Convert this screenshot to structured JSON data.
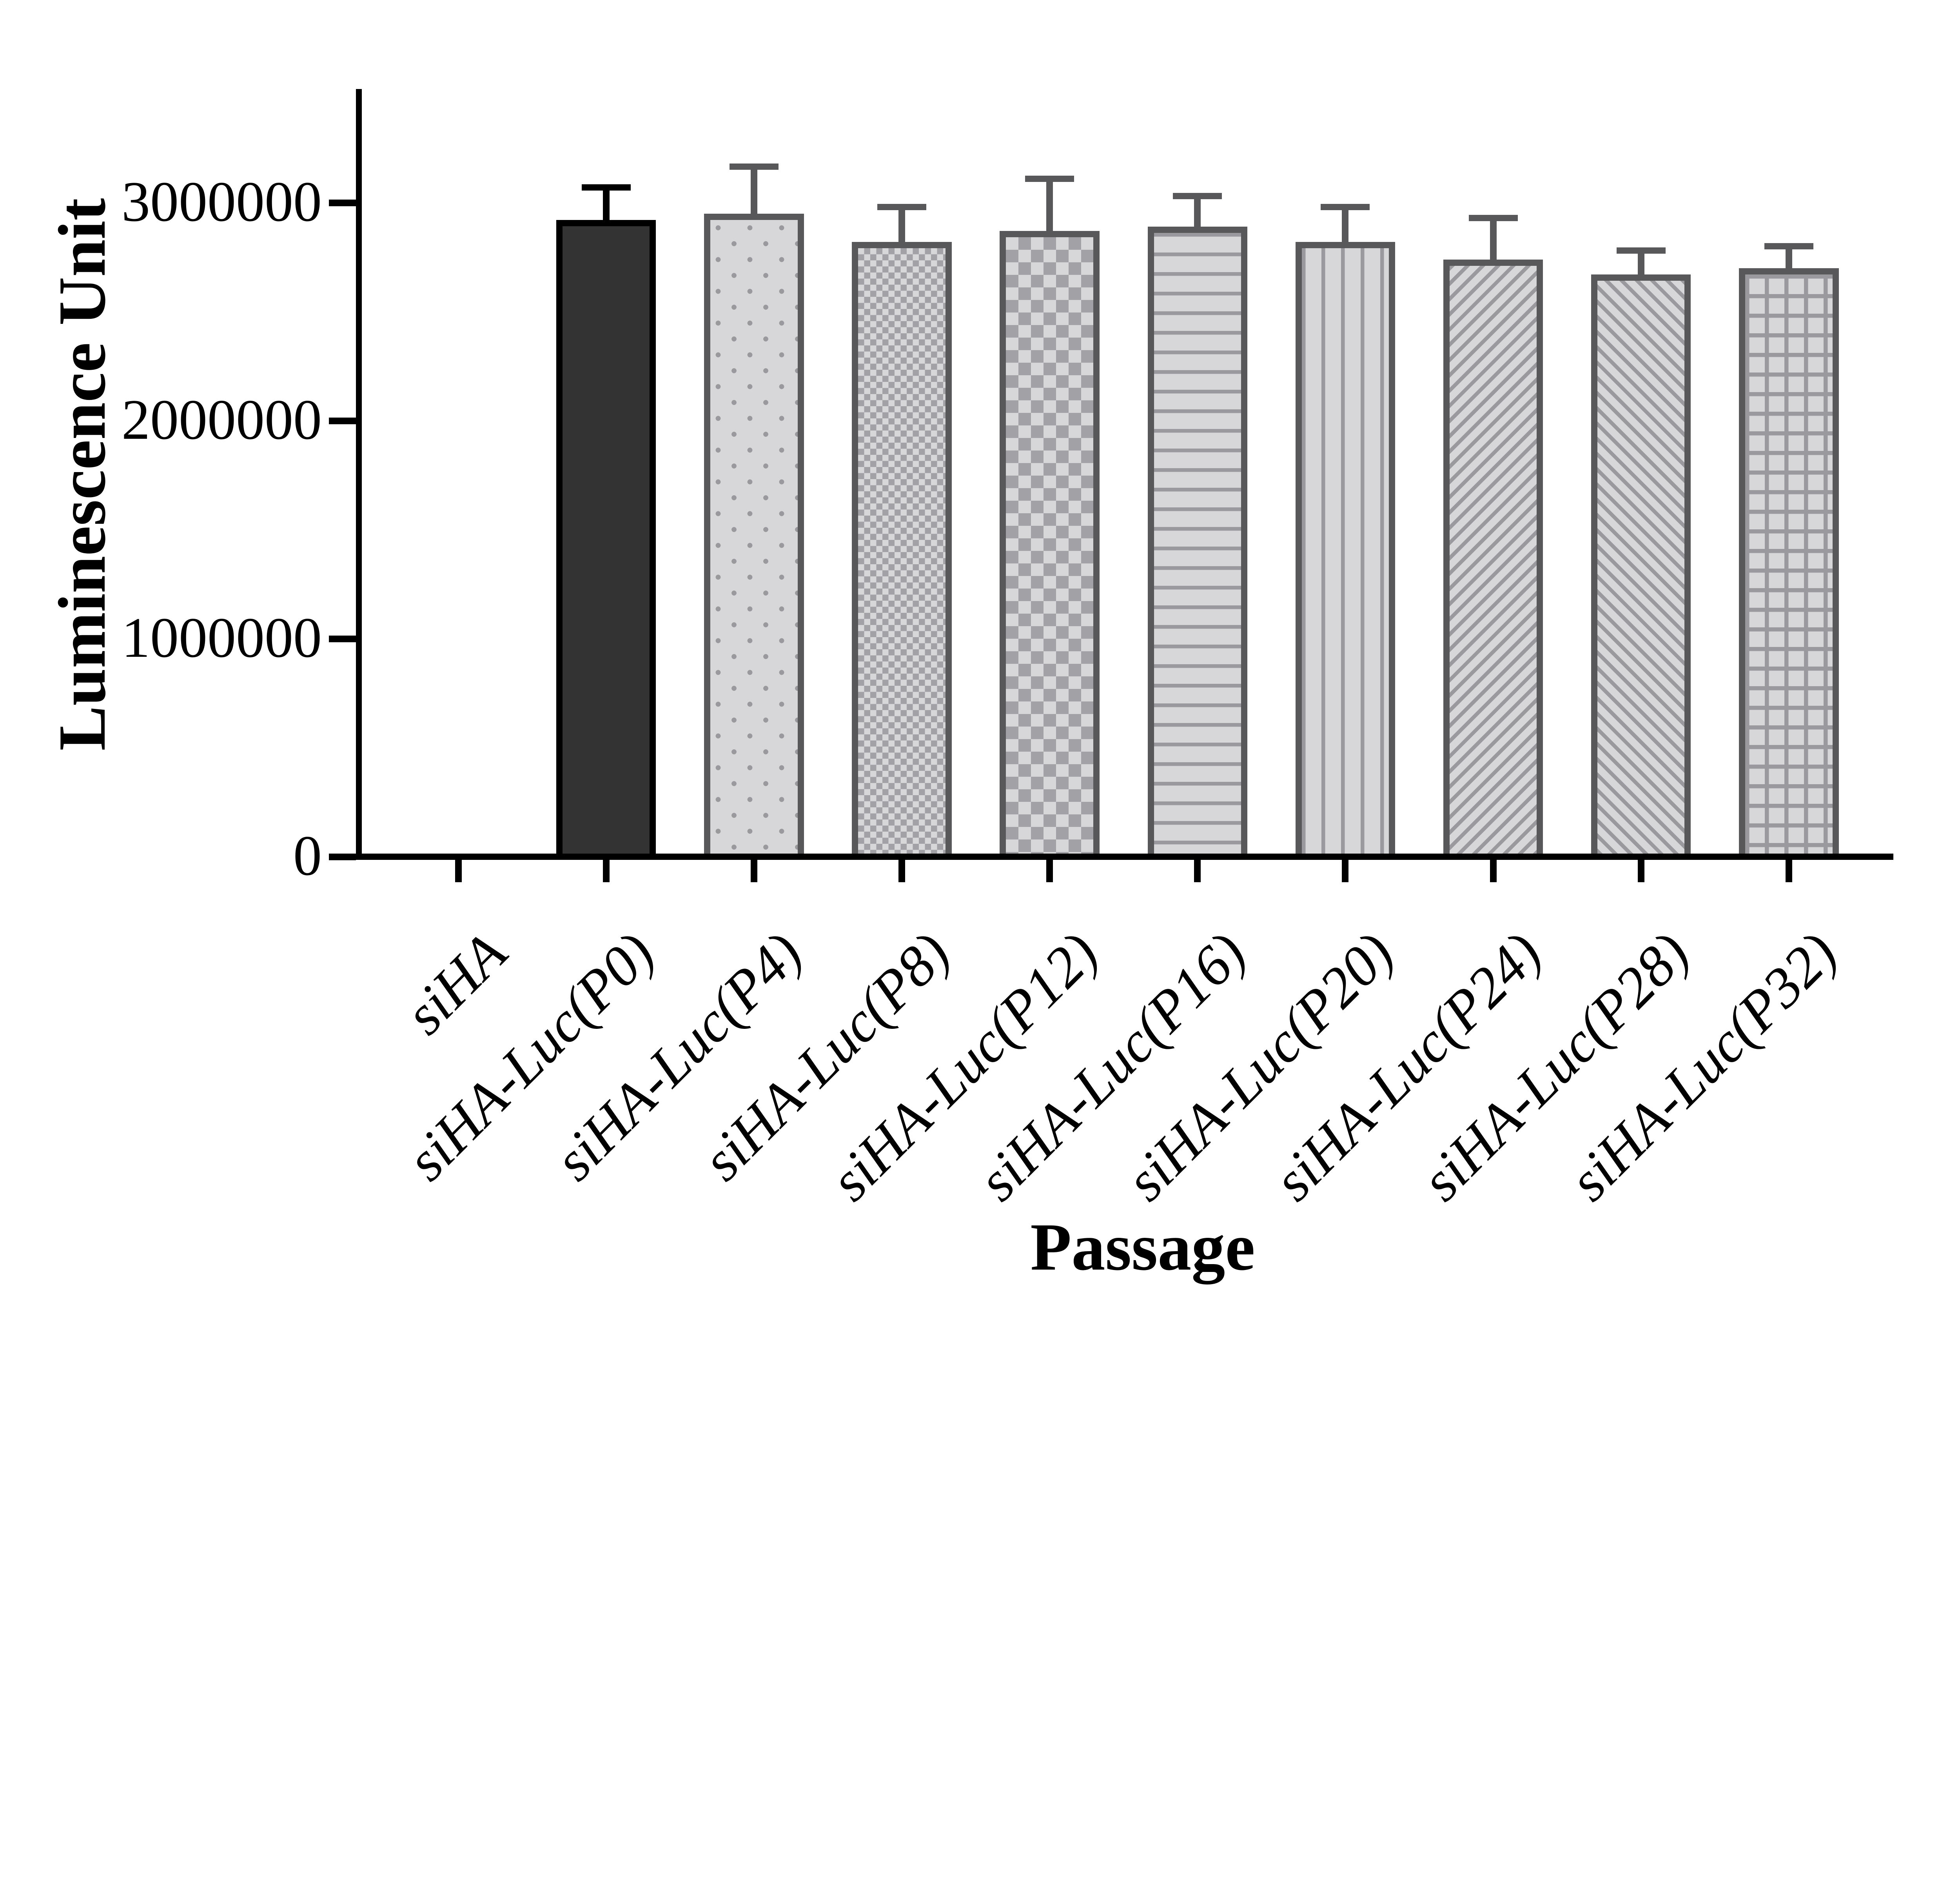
{
  "chart_data": {
    "type": "bar",
    "title": "",
    "xlabel": "Passage",
    "ylabel": "Luminescence Unit",
    "categories": [
      "siHA",
      "siHA-Luc(P0)",
      "siHA-Luc(P4)",
      "siHA-Luc(P8)",
      "siHA-Luc(P12)",
      "siHA-Luc(P16)",
      "siHA-Luc(P20)",
      "siHA-Luc(P24)",
      "siHA-Luc(P28)",
      "siHA-Luc(P32)"
    ],
    "values": [
      0,
      2920000,
      2950000,
      2820000,
      2870000,
      2890000,
      2820000,
      2740000,
      2670000,
      2700000
    ],
    "error_plus": [
      0,
      150000,
      215000,
      160000,
      240000,
      140000,
      160000,
      190000,
      110000,
      100000
    ],
    "ylim": [
      0,
      3520000
    ],
    "yticks": [
      0,
      1000000,
      2000000,
      3000000
    ],
    "ytick_labels": [
      "0",
      "1000000",
      "2000000",
      "3000000"
    ],
    "grid": false,
    "legend": null,
    "bar_patterns": [
      "none",
      "solid",
      "dots",
      "checker-small",
      "checker-large",
      "hlines",
      "vlines",
      "diag-up",
      "diag-down",
      "grid"
    ],
    "colors": {
      "background": "#ffffff",
      "axis": "#000000",
      "bar_dark_fill": "#333333",
      "bar_dark_border": "#000000",
      "bar_light_fill": "#d7d7d9",
      "bar_border": "#58585a",
      "pattern_gray": "#9a9a9e",
      "checker_gray": "#a2a2a6"
    }
  }
}
